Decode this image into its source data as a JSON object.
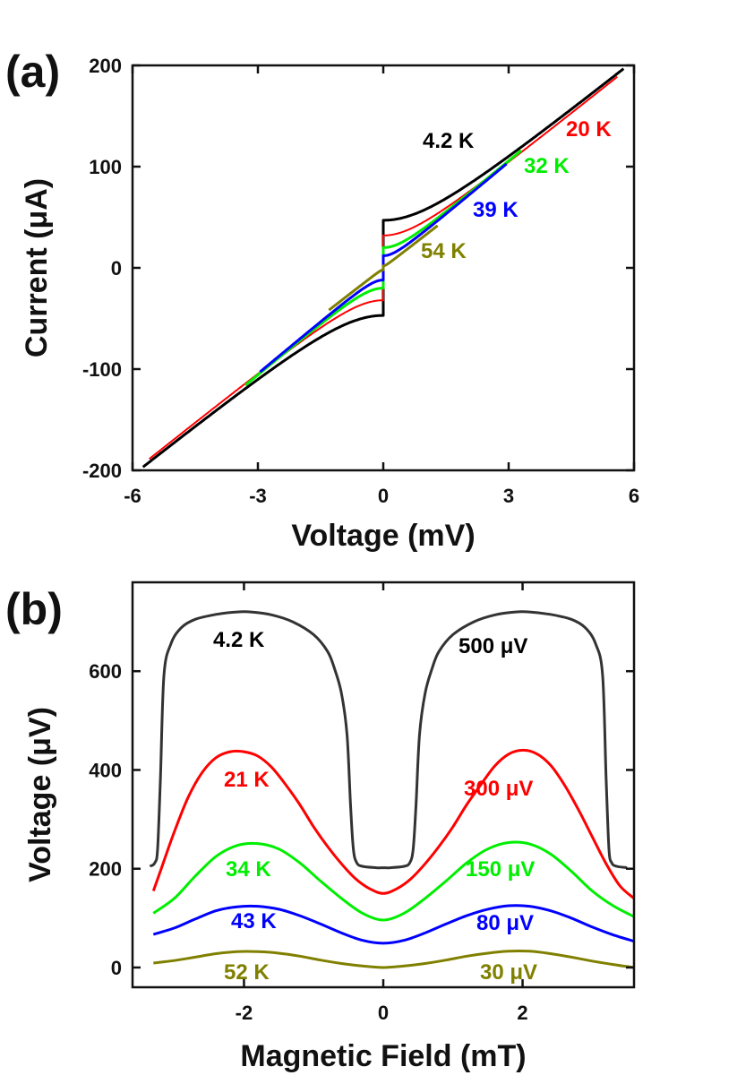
{
  "chart_data": [
    {
      "panel": "(a)",
      "type": "line",
      "xlabel": "Voltage (mV)",
      "ylabel": "Current (μA)",
      "xlim": [
        -6,
        6
      ],
      "ylim": [
        -200,
        200
      ],
      "xticks": [
        -6,
        -3,
        0,
        3,
        6
      ],
      "yticks": [
        -200,
        -100,
        0,
        100,
        200
      ],
      "series": [
        {
          "name": "4.2 K",
          "color": "#000000",
          "Ic": 47,
          "R": 0.0301,
          "Vmax": 5.75,
          "width": 3
        },
        {
          "name": "20 K",
          "color": "#ff0000",
          "Ic": 32,
          "R": 0.0301,
          "Vmax": 5.6,
          "width": 2
        },
        {
          "name": "32 K",
          "color": "#00ee00",
          "Ic": 20,
          "R": 0.0289,
          "Vmax": 3.3,
          "width": 3
        },
        {
          "name": "39 K",
          "color": "#0000ff",
          "Ic": 12,
          "R": 0.0289,
          "Vmax": 2.95,
          "width": 3
        },
        {
          "name": "54 K",
          "color": "#808000",
          "Ic": 2,
          "R": 0.0312,
          "Vmax": 1.3,
          "width": 3
        }
      ]
    },
    {
      "panel": "(b)",
      "type": "line",
      "xlabel": "Magnetic Field (mT)",
      "ylabel": "Voltage (μV)",
      "xlim": [
        -3.6,
        3.6
      ],
      "ylim": [
        -40,
        780
      ],
      "xticks": [
        -2,
        0,
        2
      ],
      "yticks": [
        0,
        200,
        400,
        600
      ],
      "series": [
        {
          "name": "4.2 K",
          "bias": "500 μV",
          "color": "#333333",
          "x": [
            -3.35,
            -3.28,
            -3.24,
            -3.2,
            -3.15,
            -3.05,
            -2.9,
            -2.7,
            -2.4,
            -2.1,
            -1.9,
            -1.6,
            -1.3,
            -1.0,
            -0.8,
            -0.7,
            -0.6,
            -0.52,
            -0.47,
            -0.43,
            -0.38,
            -0.3,
            -0.1,
            0,
            0.1,
            0.3,
            0.38,
            0.43,
            0.47,
            0.52,
            0.6,
            0.7,
            0.8,
            1.0,
            1.3,
            1.6,
            1.9,
            2.1,
            2.4,
            2.7,
            2.9,
            3.05,
            3.15,
            3.2,
            3.24,
            3.28,
            3.35,
            3.5
          ],
          "y": [
            205,
            212,
            240,
            380,
            590,
            655,
            688,
            705,
            715,
            720,
            720,
            714,
            700,
            674,
            640,
            605,
            555,
            470,
            330,
            240,
            212,
            205,
            202,
            202,
            202,
            205,
            212,
            240,
            330,
            470,
            555,
            605,
            640,
            674,
            700,
            714,
            720,
            720,
            715,
            705,
            688,
            655,
            590,
            380,
            240,
            212,
            205,
            202
          ]
        },
        {
          "name": "21 K",
          "bias": "300 μV",
          "color": "#ff0000",
          "x": [
            -3.3,
            -3.2,
            -3.0,
            -2.8,
            -2.6,
            -2.4,
            -2.2,
            -2.0,
            -1.8,
            -1.6,
            -1.4,
            -1.2,
            -1.0,
            -0.8,
            -0.6,
            -0.4,
            -0.2,
            0,
            0.2,
            0.4,
            0.6,
            0.8,
            1.0,
            1.2,
            1.4,
            1.6,
            1.8,
            2.0,
            2.2,
            2.4,
            2.6,
            2.8,
            3.0,
            3.2,
            3.4,
            3.6
          ],
          "y": [
            155,
            195,
            275,
            345,
            395,
            425,
            437,
            437,
            428,
            405,
            370,
            330,
            285,
            245,
            210,
            180,
            160,
            150,
            160,
            180,
            210,
            245,
            285,
            330,
            370,
            408,
            432,
            440,
            433,
            410,
            370,
            320,
            265,
            210,
            165,
            140
          ]
        },
        {
          "name": "34 K",
          "bias": "150 μV",
          "color": "#00ee00",
          "x": [
            -3.3,
            -3.0,
            -2.7,
            -2.4,
            -2.1,
            -1.8,
            -1.5,
            -1.2,
            -0.9,
            -0.6,
            -0.3,
            0,
            0.3,
            0.6,
            0.9,
            1.2,
            1.5,
            1.8,
            2.1,
            2.4,
            2.7,
            3.0,
            3.3,
            3.6
          ],
          "y": [
            110,
            140,
            185,
            225,
            247,
            251,
            240,
            212,
            175,
            140,
            110,
            96,
            110,
            140,
            175,
            212,
            240,
            253,
            250,
            230,
            195,
            155,
            125,
            103
          ]
        },
        {
          "name": "43 K",
          "bias": "80 μV",
          "color": "#0000ff",
          "x": [
            -3.3,
            -3.0,
            -2.7,
            -2.4,
            -2.1,
            -1.8,
            -1.5,
            -1.2,
            -0.9,
            -0.6,
            -0.3,
            0,
            0.3,
            0.6,
            0.9,
            1.2,
            1.5,
            1.8,
            2.1,
            2.4,
            2.7,
            3.0,
            3.3,
            3.6
          ],
          "y": [
            67,
            80,
            98,
            115,
            123,
            124,
            118,
            105,
            88,
            70,
            55,
            49,
            55,
            70,
            88,
            105,
            118,
            125,
            124,
            115,
            100,
            82,
            66,
            53
          ]
        },
        {
          "name": "52 K",
          "bias": "30 μV",
          "color": "#808000",
          "x": [
            -3.3,
            -3.0,
            -2.7,
            -2.4,
            -2.1,
            -1.8,
            -1.5,
            -1.2,
            -0.9,
            -0.6,
            -0.3,
            0,
            0.3,
            0.6,
            0.9,
            1.2,
            1.5,
            1.8,
            2.1,
            2.4,
            2.7,
            3.0,
            3.3,
            3.6
          ],
          "y": [
            9,
            14,
            21,
            28,
            32,
            32,
            29,
            23,
            15,
            8,
            3,
            0,
            3,
            8,
            15,
            23,
            29,
            33,
            33,
            28,
            21,
            13,
            6,
            0
          ]
        }
      ]
    }
  ]
}
